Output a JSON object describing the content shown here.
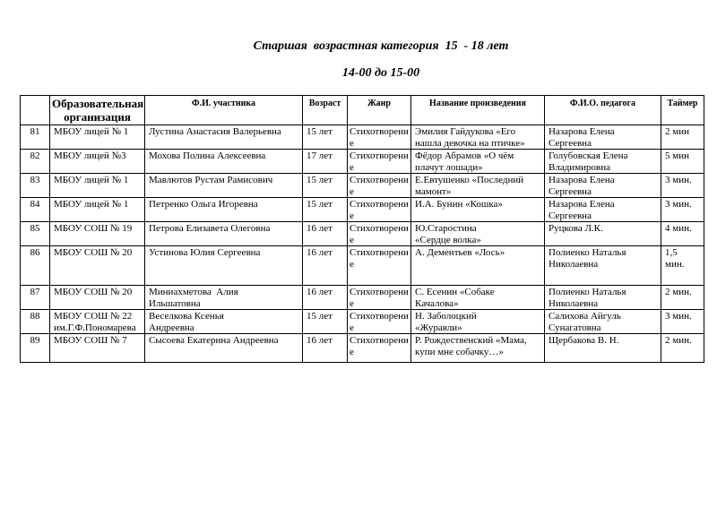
{
  "title": {
    "line1": "Старшая  возрастная категория  15  - 18 лет",
    "line2": "14-00 до 15-00"
  },
  "table": {
    "headers": {
      "num": "",
      "org": "Образовательная организация",
      "participant": "Ф.И. участника",
      "age": "Возраст",
      "genre": "Жанр",
      "work": "Название произведения",
      "teacher": "Ф.И.О. педагога",
      "timer": "Таймер"
    },
    "column_keys": [
      "num",
      "org",
      "participant",
      "age",
      "genre",
      "work",
      "teacher",
      "timer"
    ],
    "rows": [
      {
        "num": "81",
        "org": "МБОУ лицей № 1",
        "participant": "Лустина Анастасия Валерьевна",
        "age": "15 лет",
        "genre": "Стихотворение",
        "work": "Эмилия Гайдукова «Его\nнашла девочка на птичке»",
        "teacher": "Назарова Елена\nСергеевна",
        "timer": "2 мин"
      },
      {
        "num": "82",
        "org": "МБОУ лицей №3",
        "participant": "Мохова Полина Алексеевна",
        "age": "17 лет",
        "genre": "Стихотворение",
        "work": "Фёдор Абрамов «О чём\nплачут лошади»",
        "teacher": "Голубовская Елена\nВладимировна",
        "timer": "5 мин"
      },
      {
        "num": "83",
        "org": "МБОУ лицей № 1",
        "participant": "Мавлютов Рустам Рамисович",
        "age": "15 лет",
        "genre": "Стихотворение",
        "work": "Е.Евтушенко «Последний\nмамонт»",
        "teacher": "Назарова Елена\nСергеевна",
        "timer": "3 мин."
      },
      {
        "num": "84",
        "org": "МБОУ лицей № 1",
        "participant": "Петренко Ольга Игоревна",
        "age": "15 лет",
        "genre": "Стихотворение",
        "work": "И.А. Бунин «Кошка»",
        "teacher": "Назарова Елена\nСергеевна",
        "timer": "3 мин."
      },
      {
        "num": "85",
        "org": "МБОУ СОШ № 19",
        "participant": "Петрова Елизавета Олеговна",
        "age": "16 лет",
        "genre": "Стихотворение",
        "work": "Ю.Старостина\n«Сердце волка»",
        "teacher": "Руцкова Л.К.",
        "timer": "4 мин."
      },
      {
        "num": "86",
        "org": "МБОУ СОШ № 20",
        "participant": "Устинова Юлия Сергеевна",
        "age": "16 лет",
        "genre": "Стихотворение",
        "work": "А. Дементьев «Лось»",
        "teacher": "Полиенко Наталья\nНиколаевна",
        "timer": "1,5\nмин."
      },
      {
        "num": "87",
        "org": "МБОУ СОШ № 20",
        "participant": "Миниахметова  Алия\nИльшатовна",
        "age": "16 лет",
        "genre": "Стихотворение",
        "work": "С. Есенин «Собаке\nКачалова»",
        "teacher": "Полиенко Наталья\nНиколаевна",
        "timer": "2 мин."
      },
      {
        "num": "88",
        "org": "МБОУ СОШ № 22\nим.Г.Ф.Пономарева",
        "participant": "Веселкова Ксенья\nАндреевна",
        "age": "15 лет",
        "genre": "Стихотворение",
        "work": "Н. Заболоцкий\n«Журавли»",
        "teacher": "Салихова Айгуль\nСунагатовна",
        "timer": "3 мин."
      },
      {
        "num": "89",
        "org": "МБОУ СОШ № 7",
        "participant": "Сысоева Екатерина Андреевна",
        "age": "16 лет",
        "genre": "Стихотворение",
        "work": "Р. Рождественский «Мама,\nкупи мне собачку…»",
        "teacher": "Щербакова В. Н.",
        "timer": "2 мин."
      }
    ]
  }
}
